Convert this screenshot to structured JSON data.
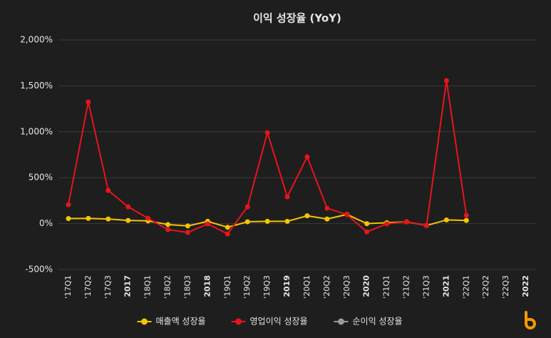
{
  "chart_data": {
    "type": "line",
    "title": "이익 성장율 (YoY)",
    "categories": [
      "'17Q1",
      "'17Q2",
      "'17Q3",
      "2017",
      "'18Q1",
      "'18Q2",
      "'18Q3",
      "2018",
      "'19Q1",
      "'19Q2",
      "'19Q3",
      "2019",
      "'20Q1",
      "'20Q2",
      "'20Q3",
      "2020",
      "'21Q1",
      "'21Q2",
      "'21Q3",
      "2021",
      "'22Q1",
      "'22Q2",
      "'22Q3",
      "2022"
    ],
    "series": [
      {
        "name": "매출액 성장율",
        "color": "#f5c400",
        "values": [
          55,
          57,
          50,
          35,
          30,
          -10,
          -25,
          25,
          -40,
          20,
          25,
          25,
          85,
          50,
          100,
          0,
          10,
          20,
          -20,
          40,
          35,
          null,
          null,
          null
        ]
      },
      {
        "name": "영업이익 성장율",
        "color": "#e8141b",
        "values": [
          206,
          1325,
          362,
          183,
          59,
          -65,
          -96,
          -3,
          -112,
          183,
          991,
          292,
          727,
          168,
          98,
          -89,
          -3,
          20,
          -19,
          1557,
          90,
          null,
          null,
          null
        ]
      },
      {
        "name": "순이익 성장율",
        "color": "#9a9a9a",
        "values": [
          null,
          null,
          null,
          null,
          null,
          null,
          null,
          null,
          null,
          null,
          null,
          null,
          null,
          null,
          null,
          null,
          null,
          null,
          null,
          null,
          null,
          null,
          null,
          null
        ]
      }
    ],
    "ylim": [
      -500,
      2000
    ],
    "yticks": [
      {
        "value": -500,
        "label": "-500%"
      },
      {
        "value": 0,
        "label": "0%"
      },
      {
        "value": 500,
        "label": "500%"
      },
      {
        "value": 1000,
        "label": "1,000%"
      },
      {
        "value": 1500,
        "label": "1,500%"
      },
      {
        "value": 2000,
        "label": "2,000%"
      }
    ],
    "grid": true,
    "legend": "bottom"
  }
}
